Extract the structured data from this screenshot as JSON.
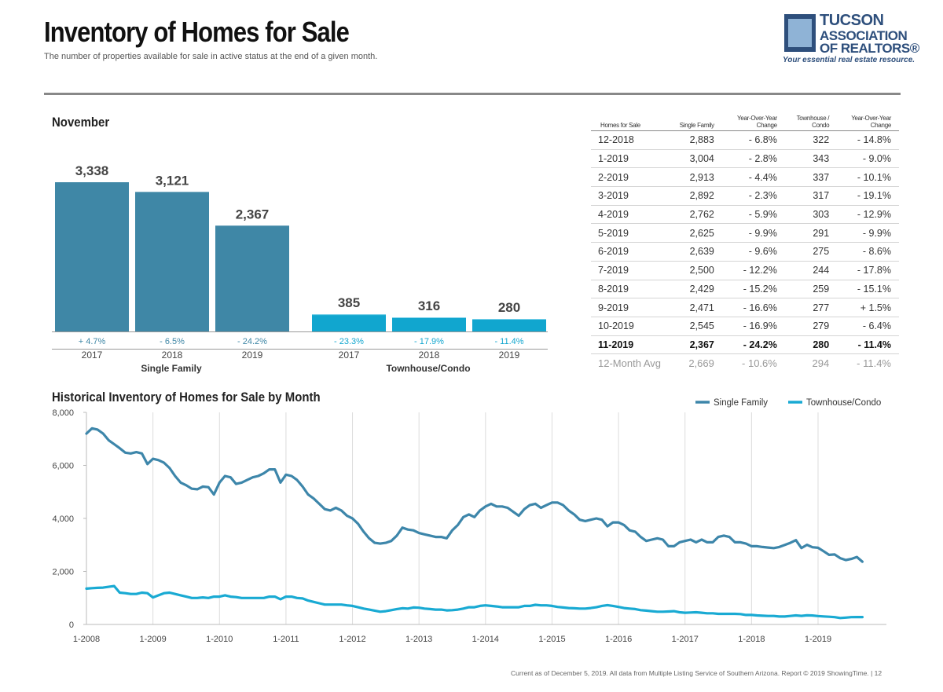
{
  "header": {
    "title": "Inventory of Homes for Sale",
    "subtitle": "The number of properties available for sale in active status at the end of a given month."
  },
  "logo": {
    "line1": "TUCSON",
    "line2": "ASSOCIATION",
    "line3": "OF REALTORS®",
    "tagline": "Your essential real estate resource."
  },
  "colors": {
    "single_family": "#3f87a6",
    "townhouse": "#11a6cf",
    "single_family_line": "#3d86aa",
    "townhouse_line": "#19aad3"
  },
  "chart_data": [
    {
      "type": "bar",
      "title": "November",
      "groups": [
        "Single Family",
        "Townhouse/Condo"
      ],
      "categories": [
        "2017",
        "2018",
        "2019"
      ],
      "series": [
        {
          "name": "Single Family",
          "values": [
            3338,
            3121,
            2367
          ],
          "labels": [
            "3,338",
            "3,121",
            "2,367"
          ],
          "changes": [
            "+ 4.7%",
            "- 6.5%",
            "- 24.2%"
          ]
        },
        {
          "name": "Townhouse/Condo",
          "values": [
            385,
            316,
            280
          ],
          "labels": [
            "385",
            "316",
            "280"
          ],
          "changes": [
            "- 23.3%",
            "- 17.9%",
            "- 11.4%"
          ]
        }
      ]
    },
    {
      "type": "line",
      "title": "Historical Inventory of Homes for Sale by Month",
      "x_ticks": [
        "1-2008",
        "1-2009",
        "1-2010",
        "1-2011",
        "1-2012",
        "1-2013",
        "1-2014",
        "1-2015",
        "1-2016",
        "1-2017",
        "1-2018",
        "1-2019"
      ],
      "y_ticks": [
        "0",
        "2,000",
        "4,000",
        "6,000",
        "8,000"
      ],
      "ylim": [
        0,
        8000
      ],
      "x_start": "1-2008",
      "x_end": "11-2019",
      "grid": "vertical",
      "legend": "top-right",
      "series": [
        {
          "name": "Single Family",
          "values": [
            7200,
            7400,
            7350,
            7200,
            6950,
            6800,
            6650,
            6480,
            6450,
            6500,
            6450,
            6050,
            6250,
            6200,
            6100,
            5900,
            5600,
            5350,
            5250,
            5120,
            5100,
            5200,
            5180,
            4900,
            5350,
            5600,
            5550,
            5300,
            5350,
            5450,
            5550,
            5600,
            5700,
            5850,
            5850,
            5350,
            5650,
            5600,
            5450,
            5200,
            4900,
            4750,
            4550,
            4350,
            4300,
            4400,
            4300,
            4100,
            4000,
            3800,
            3500,
            3250,
            3080,
            3050,
            3080,
            3150,
            3350,
            3650,
            3580,
            3550,
            3450,
            3400,
            3350,
            3300,
            3300,
            3250,
            3550,
            3750,
            4050,
            4150,
            4050,
            4300,
            4450,
            4550,
            4450,
            4450,
            4400,
            4250,
            4100,
            4350,
            4500,
            4550,
            4400,
            4500,
            4600,
            4600,
            4500,
            4300,
            4150,
            3950,
            3900,
            3950,
            4000,
            3950,
            3700,
            3850,
            3850,
            3750,
            3550,
            3500,
            3300,
            3150,
            3200,
            3250,
            3200,
            2950,
            2950,
            3100,
            3150,
            3200,
            3100,
            3200,
            3100,
            3100,
            3300,
            3350,
            3300,
            3100,
            3100,
            3050,
            2950,
            2950,
            2920,
            2900,
            2880,
            2920,
            3000,
            3080,
            3180,
            2883,
            3004,
            2913,
            2892,
            2762,
            2625,
            2639,
            2500,
            2429,
            2471,
            2545,
            2367
          ]
        },
        {
          "name": "Townhouse/Condo",
          "values": [
            1350,
            1370,
            1380,
            1390,
            1420,
            1450,
            1200,
            1180,
            1150,
            1150,
            1200,
            1180,
            1020,
            1100,
            1180,
            1200,
            1150,
            1100,
            1050,
            1000,
            1000,
            1020,
            1000,
            1050,
            1050,
            1100,
            1050,
            1030,
            1000,
            1000,
            1000,
            1000,
            1000,
            1050,
            1050,
            950,
            1050,
            1050,
            1000,
            980,
            900,
            850,
            800,
            750,
            750,
            750,
            750,
            720,
            700,
            650,
            600,
            560,
            520,
            480,
            500,
            540,
            580,
            610,
            600,
            640,
            630,
            600,
            580,
            560,
            560,
            530,
            540,
            560,
            600,
            650,
            650,
            700,
            720,
            700,
            680,
            650,
            650,
            650,
            650,
            700,
            700,
            740,
            720,
            720,
            700,
            660,
            640,
            620,
            610,
            600,
            600,
            620,
            650,
            700,
            730,
            700,
            660,
            620,
            600,
            580,
            540,
            520,
            500,
            480,
            480,
            490,
            500,
            460,
            440,
            450,
            460,
            440,
            420,
            420,
            400,
            400,
            400,
            400,
            390,
            360,
            360,
            340,
            330,
            320,
            320,
            300,
            300,
            320,
            340,
            322,
            343,
            337,
            317,
            303,
            291,
            275,
            244,
            259,
            277,
            279,
            280
          ]
        }
      ]
    }
  ],
  "table": {
    "headers": [
      "Homes for Sale",
      "Single Family",
      "Year-Over-Year Change",
      "Townhouse / Condo",
      "Year-Over-Year Change"
    ],
    "rows": [
      [
        "12-2018",
        "2,883",
        "- 6.8%",
        "322",
        "- 14.8%"
      ],
      [
        "1-2019",
        "3,004",
        "- 2.8%",
        "343",
        "- 9.0%"
      ],
      [
        "2-2019",
        "2,913",
        "- 4.4%",
        "337",
        "- 10.1%"
      ],
      [
        "3-2019",
        "2,892",
        "- 2.3%",
        "317",
        "- 19.1%"
      ],
      [
        "4-2019",
        "2,762",
        "- 5.9%",
        "303",
        "- 12.9%"
      ],
      [
        "5-2019",
        "2,625",
        "- 9.9%",
        "291",
        "- 9.9%"
      ],
      [
        "6-2019",
        "2,639",
        "- 9.6%",
        "275",
        "- 8.6%"
      ],
      [
        "7-2019",
        "2,500",
        "- 12.2%",
        "244",
        "- 17.8%"
      ],
      [
        "8-2019",
        "2,429",
        "- 15.2%",
        "259",
        "- 15.1%"
      ],
      [
        "9-2019",
        "2,471",
        "- 16.6%",
        "277",
        "+ 1.5%"
      ],
      [
        "10-2019",
        "2,545",
        "- 16.9%",
        "279",
        "- 6.4%"
      ]
    ],
    "current": [
      "11-2019",
      "2,367",
      "- 24.2%",
      "280",
      "- 11.4%"
    ],
    "average": [
      "12-Month Avg",
      "2,669",
      "- 10.6%",
      "294",
      "- 11.4%"
    ]
  },
  "footer": "Current as of December 5, 2019. All data from Multiple Listing Service of Southern Arizona. Report © 2019 ShowingTime.  |  12"
}
